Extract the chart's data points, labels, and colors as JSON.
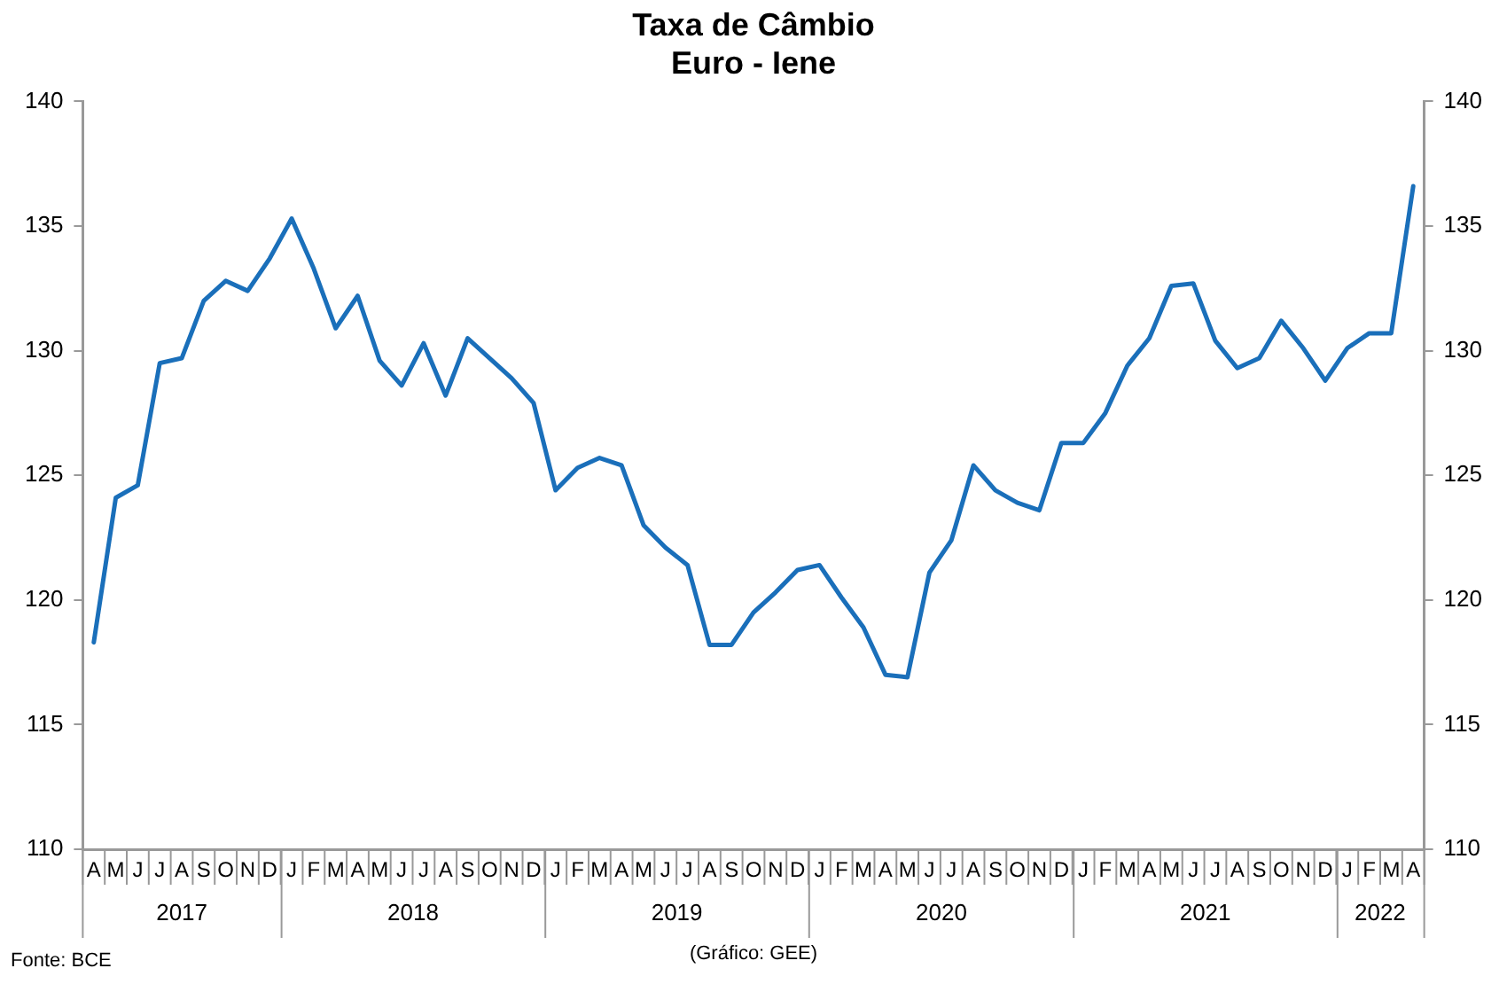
{
  "chart_data": {
    "type": "line",
    "title": "Taxa de Câmbio",
    "subtitle": "Euro - Iene",
    "categories": [
      "A",
      "M",
      "J",
      "J",
      "A",
      "S",
      "O",
      "N",
      "D",
      "J",
      "F",
      "M",
      "A",
      "M",
      "J",
      "J",
      "A",
      "S",
      "O",
      "N",
      "D",
      "J",
      "F",
      "M",
      "A",
      "M",
      "J",
      "J",
      "A",
      "S",
      "O",
      "N",
      "D",
      "J",
      "F",
      "M",
      "A",
      "M",
      "J",
      "J",
      "A",
      "S",
      "O",
      "N",
      "D",
      "J",
      "F",
      "M",
      "A",
      "M",
      "J",
      "J",
      "A",
      "S",
      "O",
      "N",
      "D",
      "J",
      "F",
      "M",
      "A"
    ],
    "series": [
      {
        "color": "#1a6fba",
        "values": [
          118.3,
          124.1,
          124.6,
          129.5,
          129.7,
          132.0,
          132.8,
          132.4,
          133.7,
          135.3,
          133.3,
          130.9,
          132.2,
          129.6,
          128.6,
          130.3,
          128.2,
          130.5,
          129.7,
          128.9,
          127.9,
          124.4,
          125.3,
          125.7,
          125.4,
          123.0,
          122.1,
          121.4,
          118.2,
          118.2,
          119.5,
          120.3,
          121.2,
          121.4,
          120.1,
          118.9,
          117.0,
          116.9,
          121.1,
          122.4,
          125.4,
          124.4,
          123.9,
          123.6,
          126.3,
          126.3,
          127.5,
          129.4,
          130.5,
          132.6,
          132.7,
          130.4,
          129.3,
          129.7,
          131.2,
          130.1,
          128.8,
          130.1,
          130.7,
          130.7,
          136.6
        ]
      }
    ],
    "x2lim": [
      "2017-04-01",
      "2022-05-01"
    ],
    "x2ticks": [
      {
        "value": "2017-08-16",
        "label": "2017"
      },
      {
        "value": "2018-07-02",
        "label": "2018"
      },
      {
        "value": "2019-07-02",
        "label": "2019"
      },
      {
        "value": "2020-07-02",
        "label": "2020"
      },
      {
        "value": "2021-07-02",
        "label": "2021"
      },
      {
        "value": "2022-03-01",
        "label": "2022"
      }
    ],
    "ylim": [
      110,
      140
    ],
    "yticks": [
      110,
      115,
      120,
      125,
      130,
      135,
      140
    ],
    "y2lim": [
      110,
      140
    ],
    "y2ticks": [
      110,
      115,
      120,
      125,
      130,
      135,
      140
    ],
    "grid": false,
    "legend": false,
    "marker": "none",
    "line_style": "solid",
    "annotations": [
      "Fonte: BCE",
      "(Gráfico: GEE)"
    ]
  }
}
